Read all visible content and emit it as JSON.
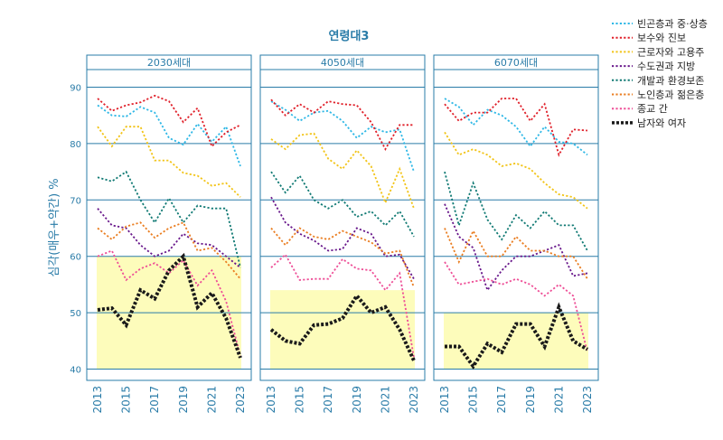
{
  "chart_data": {
    "type": "line",
    "title": "연령대3",
    "ylabel": "심각(매우+약간) %",
    "ylim": [
      38,
      92
    ],
    "yticks": [
      40,
      50,
      60,
      70,
      80,
      90
    ],
    "x": [
      2013,
      2014,
      2015,
      2016,
      2017,
      2018,
      2019,
      2020,
      2021,
      2022,
      2023
    ],
    "xticks": [
      2013,
      2015,
      2017,
      2019,
      2021,
      2023
    ],
    "grid": true,
    "legend_position": "right",
    "colors": {
      "panel_border": "#2a7ca8",
      "grid": "#2a7ca8",
      "tick_text": "#2a7ca8",
      "highlight_fill": "#fdfcbb"
    },
    "panels": [
      {
        "label": "2030세대",
        "highlight_ymax": 60,
        "series": [
          {
            "name": "빈곤층과 중·상층",
            "color": "#2fb8e6",
            "values": [
              86.8,
              85.0,
              84.8,
              86.5,
              85.5,
              81.0,
              79.8,
              83.5,
              80.3,
              83.0,
              76.0
            ]
          },
          {
            "name": "보수와 진보",
            "color": "#e0202a",
            "values": [
              88.0,
              85.8,
              86.8,
              87.3,
              88.5,
              87.5,
              83.8,
              86.3,
              79.5,
              82.0,
              83.3
            ]
          },
          {
            "name": "근로자와 고용주",
            "color": "#f2c418",
            "values": [
              83.0,
              79.5,
              83.0,
              83.0,
              77.0,
              77.0,
              74.8,
              74.3,
              72.5,
              73.0,
              70.5
            ]
          },
          {
            "name": "수도권과 지방",
            "color": "#6a1a8c",
            "values": [
              68.5,
              65.5,
              65.0,
              62.0,
              60.0,
              61.0,
              64.0,
              62.3,
              62.0,
              60.0,
              58.0
            ]
          },
          {
            "name": "개발과 환경보존",
            "color": "#117a74",
            "values": [
              74.0,
              73.3,
              75.0,
              70.0,
              66.0,
              70.3,
              66.0,
              69.0,
              68.5,
              68.5,
              58.0
            ]
          },
          {
            "name": "노인층과 젊은층",
            "color": "#ea7e22",
            "values": [
              65.0,
              63.0,
              65.3,
              66.0,
              63.3,
              65.0,
              66.0,
              61.0,
              61.5,
              59.0,
              56.0
            ]
          },
          {
            "name": "종교 간",
            "color": "#ee4f97",
            "values": [
              60.0,
              61.0,
              55.8,
              57.8,
              58.8,
              57.0,
              59.3,
              54.8,
              57.5,
              52.0,
              42.3
            ]
          },
          {
            "name": "남자와 여자",
            "color": "#1a1a1a",
            "values": [
              50.5,
              50.8,
              47.8,
              54.0,
              52.5,
              57.5,
              60.0,
              51.0,
              53.5,
              49.0,
              42.0
            ]
          }
        ]
      },
      {
        "label": "4050세대",
        "highlight_ymax": 54,
        "series": [
          {
            "name": "빈곤층과 중·상층",
            "color": "#2fb8e6",
            "values": [
              87.5,
              86.0,
              84.0,
              85.5,
              85.8,
              84.0,
              81.0,
              83.0,
              82.0,
              82.5,
              75.0
            ]
          },
          {
            "name": "보수와 진보",
            "color": "#e0202a",
            "values": [
              87.8,
              85.0,
              87.0,
              85.5,
              87.5,
              87.0,
              86.8,
              83.8,
              79.0,
              83.3,
              83.3
            ]
          },
          {
            "name": "근로자와 고용주",
            "color": "#f2c418",
            "values": [
              80.8,
              79.0,
              81.5,
              81.8,
              77.3,
              75.5,
              78.8,
              76.0,
              69.5,
              75.5,
              68.5
            ]
          },
          {
            "name": "수도권과 지방",
            "color": "#6a1a8c",
            "values": [
              70.5,
              66.0,
              64.0,
              62.8,
              61.0,
              61.3,
              65.0,
              64.0,
              60.0,
              60.3,
              56.0
            ]
          },
          {
            "name": "개발과 환경보존",
            "color": "#117a74",
            "values": [
              75.0,
              71.3,
              74.3,
              70.0,
              68.5,
              70.0,
              67.0,
              68.0,
              65.5,
              68.0,
              63.5
            ]
          },
          {
            "name": "노인층과 젊은층",
            "color": "#ea7e22",
            "values": [
              65.0,
              62.0,
              65.0,
              63.5,
              63.0,
              64.5,
              63.5,
              62.5,
              60.5,
              61.0,
              54.5
            ]
          },
          {
            "name": "종교 간",
            "color": "#ee4f97",
            "values": [
              58.0,
              60.3,
              55.8,
              56.0,
              56.0,
              59.5,
              57.8,
              57.5,
              54.0,
              57.0,
              42.0
            ]
          },
          {
            "name": "남자와 여자",
            "color": "#1a1a1a",
            "values": [
              47.0,
              45.0,
              44.5,
              47.8,
              48.0,
              49.0,
              53.0,
              50.0,
              51.0,
              47.0,
              41.5
            ]
          }
        ]
      },
      {
        "label": "6070세대",
        "highlight_ymax": 50,
        "series": [
          {
            "name": "빈곤층과 중·상층",
            "color": "#2fb8e6",
            "values": [
              88.0,
              86.5,
              83.3,
              86.0,
              85.0,
              83.0,
              79.5,
              83.0,
              80.3,
              80.0,
              78.0
            ]
          },
          {
            "name": "보수와 진보",
            "color": "#e0202a",
            "values": [
              87.0,
              84.0,
              85.5,
              85.5,
              88.0,
              88.0,
              84.0,
              87.0,
              78.0,
              82.5,
              82.3
            ]
          },
          {
            "name": "근로자와 고용주",
            "color": "#f2c418",
            "values": [
              82.0,
              78.0,
              79.0,
              78.0,
              76.0,
              76.5,
              75.5,
              73.0,
              71.0,
              70.5,
              68.5
            ]
          },
          {
            "name": "수도권과 지방",
            "color": "#6a1a8c",
            "values": [
              69.3,
              63.5,
              61.5,
              54.0,
              57.5,
              60.0,
              60.0,
              61.0,
              62.0,
              56.5,
              57.0
            ]
          },
          {
            "name": "개발과 환경보존",
            "color": "#117a74",
            "values": [
              75.0,
              65.5,
              73.0,
              66.5,
              63.0,
              67.3,
              65.0,
              68.0,
              65.5,
              65.5,
              61.0
            ]
          },
          {
            "name": "노인층과 젊은층",
            "color": "#ea7e22",
            "values": [
              65.0,
              59.0,
              64.5,
              60.0,
              60.0,
              63.5,
              61.0,
              61.0,
              60.0,
              60.0,
              56.0
            ]
          },
          {
            "name": "종교 간",
            "color": "#ee4f97",
            "values": [
              59.0,
              55.0,
              55.5,
              56.0,
              55.0,
              56.0,
              55.0,
              53.0,
              55.0,
              53.0,
              43.0
            ]
          },
          {
            "name": "남자와 여자",
            "color": "#1a1a1a",
            "values": [
              44.0,
              44.0,
              40.5,
              44.5,
              43.0,
              48.0,
              48.0,
              44.0,
              51.0,
              45.0,
              43.5
            ]
          }
        ]
      }
    ],
    "legend": [
      {
        "name": "빈곤층과 중·상층",
        "color": "#2fb8e6"
      },
      {
        "name": "보수와 진보",
        "color": "#e0202a"
      },
      {
        "name": "근로자와 고용주",
        "color": "#f2c418"
      },
      {
        "name": "수도권과 지방",
        "color": "#6a1a8c"
      },
      {
        "name": "개발과 환경보존",
        "color": "#117a74"
      },
      {
        "name": "노인층과 젊은층",
        "color": "#ea7e22"
      },
      {
        "name": "종교 간",
        "color": "#ee4f97"
      },
      {
        "name": "남자와 여자",
        "color": "#1a1a1a"
      }
    ]
  }
}
